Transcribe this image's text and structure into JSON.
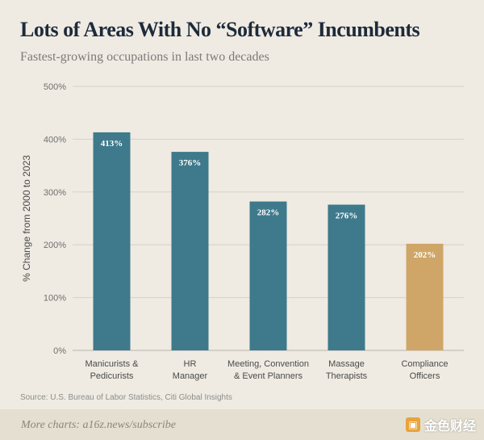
{
  "header": {
    "title": "Lots of Areas With No “Software” Incumbents",
    "subtitle": "Fastest-growing occupations in last two decades"
  },
  "chart_data": {
    "type": "bar",
    "categories": [
      [
        "Manicurists &",
        "Pedicurists"
      ],
      [
        "HR",
        "Manager"
      ],
      [
        "Meeting, Convention",
        "& Event Planners"
      ],
      [
        "Massage",
        "Therapists"
      ],
      [
        "Compliance",
        "Officers"
      ]
    ],
    "values": [
      413,
      376,
      282,
      276,
      202
    ],
    "data_labels": [
      "413%",
      "376%",
      "282%",
      "276%",
      "202%"
    ],
    "bar_colors": [
      "#3e7a8b",
      "#3e7a8b",
      "#3e7a8b",
      "#3e7a8b",
      "#cfa667"
    ],
    "ylabel": "% Change from 2000 to 2023",
    "ylim": [
      0,
      500
    ],
    "yticks": [
      0,
      100,
      200,
      300,
      400,
      500
    ],
    "ytick_labels": [
      "0%",
      "100%",
      "200%",
      "300%",
      "400%",
      "500%"
    ],
    "grid": true
  },
  "source": "Source: U.S. Bureau of Labor Statistics, Citi Global Insights",
  "footer": {
    "link_text": "More charts: a16z.news/subscribe",
    "watermark_text": "金色财经"
  },
  "colors": {
    "background": "#efebe3",
    "primary_bar": "#3e7a8b",
    "highlight_bar": "#cfa667",
    "title": "#1d2b3a",
    "footer_bg": "#e4dfd0"
  }
}
